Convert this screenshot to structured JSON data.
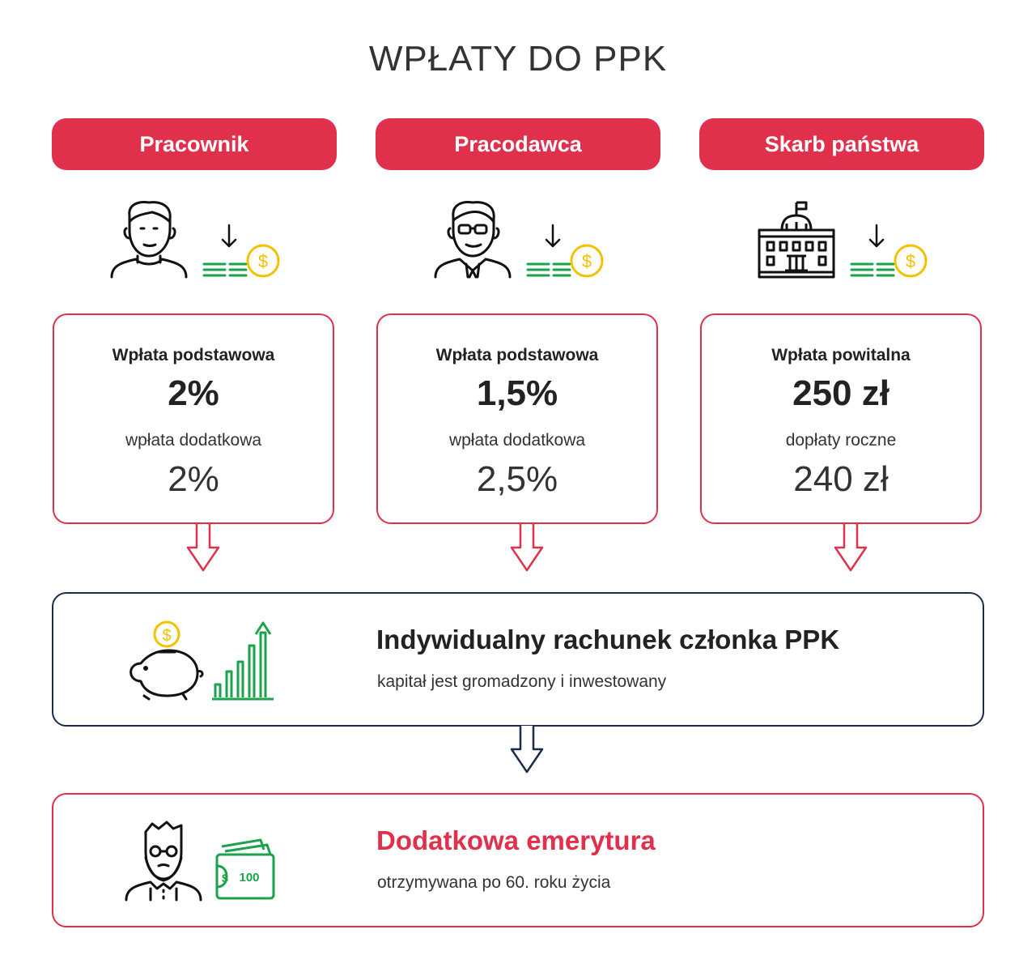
{
  "title": "WPŁATY DO PPK",
  "colors": {
    "accent_red": "#e1304c",
    "navy": "#1d2b4a",
    "green": "#1aa34a",
    "gold": "#f2c200"
  },
  "columns": [
    {
      "header": "Pracownik",
      "icon": "employee-icon",
      "label1": "Wpłata podstawowa",
      "value1": "2%",
      "label2": "wpłata dodatkowa",
      "value2": "2%"
    },
    {
      "header": "Pracodawca",
      "icon": "employer-icon",
      "label1": "Wpłata podstawowa",
      "value1": "1,5%",
      "label2": "wpłata dodatkowa",
      "value2": "2,5%"
    },
    {
      "header": "Skarb państwa",
      "icon": "government-building-icon",
      "label1": "Wpłata powitalna",
      "value1": "250 zł",
      "label2": "dopłaty roczne",
      "value2": "240 zł"
    }
  ],
  "account": {
    "title": "Indywidualny rachunek członka PPK",
    "subtitle": "kapitał jest gromadzony i inwestowany",
    "icons": [
      "piggy-bank-icon",
      "growth-chart-icon"
    ]
  },
  "pension": {
    "title": "Dodatkowa emerytura",
    "subtitle": "otrzymywana po 60. roku życia",
    "icons": [
      "senior-icon",
      "wallet-icon"
    ],
    "wallet_value": "100"
  }
}
